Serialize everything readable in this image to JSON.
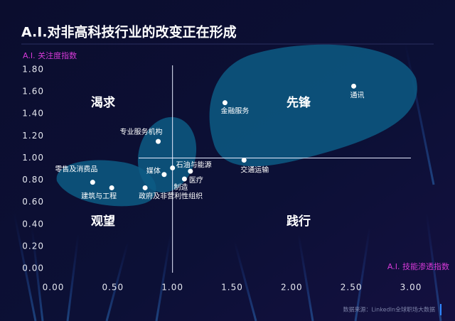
{
  "chart_data": {
    "type": "scatter",
    "title": "A.I.对非高科技行业的改变正在形成",
    "y_label": "A.I. 关注度指数",
    "x_label": "A.I. 技能渗透指数",
    "source": "数据来源：LinkedIn全球职场大数据",
    "annotations": [
      "渴求",
      "先锋",
      "观望",
      "践行"
    ],
    "color": "#ffffff",
    "labels": [
      "通讯",
      "金融服务",
      "交通运输",
      "专业服务机构",
      "石油与能源",
      "媒体",
      "医疗",
      "制造",
      "零售及消费品",
      "建筑与工程",
      "政府及非营利性组织"
    ],
    "x": [
      2.52,
      1.44,
      1.6,
      0.88,
      1.0,
      0.93,
      1.15,
      1.1,
      0.33,
      0.49,
      0.77
    ],
    "values": [
      1.65,
      1.5,
      0.98,
      1.15,
      0.91,
      0.85,
      0.88,
      0.81,
      0.78,
      0.73,
      0.73
    ],
    "xlim": [
      0,
      3
    ],
    "ylim": [
      0,
      1.8
    ],
    "xticks": [
      {
        "value": 0,
        "label": "0.00"
      },
      {
        "value": 0.5,
        "label": "0.50"
      },
      {
        "value": 1,
        "label": "1.00"
      },
      {
        "value": 1.5,
        "label": "1.50"
      },
      {
        "value": 2,
        "label": "2.00"
      },
      {
        "value": 2.5,
        "label": "2.50"
      },
      {
        "value": 3,
        "label": "3.00"
      }
    ],
    "yticks": [
      {
        "value": 0,
        "label": "0.00"
      },
      {
        "value": 0.2,
        "label": "0.20"
      },
      {
        "value": 0.4,
        "label": "0.40"
      },
      {
        "value": 0.6,
        "label": "0.60"
      },
      {
        "value": 0.8,
        "label": "0.80"
      },
      {
        "value": 1,
        "label": "1.00"
      },
      {
        "value": 1.2,
        "label": "1.20"
      },
      {
        "value": 1.4,
        "label": "1.40"
      },
      {
        "value": 1.6,
        "label": "1.60"
      },
      {
        "value": 1.8,
        "label": "1.80"
      }
    ]
  }
}
